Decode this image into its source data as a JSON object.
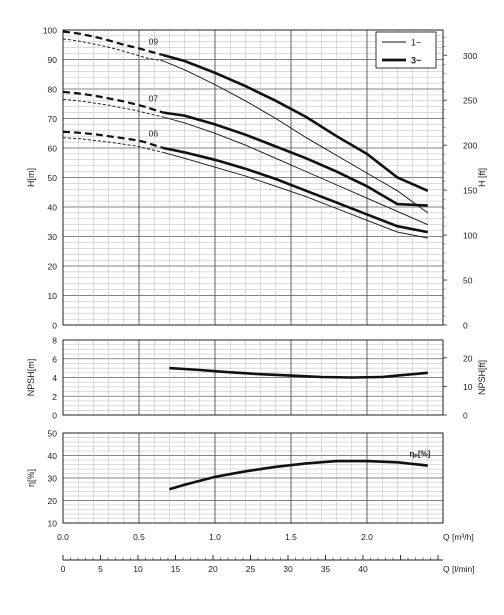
{
  "chart_data": [
    {
      "type": "line",
      "panel": "head",
      "ylabel_left": "H[m]",
      "ylabel_right": "H [ft]",
      "xlim": [
        0,
        2.5
      ],
      "ylim": [
        0,
        100
      ],
      "yticks": [
        "0",
        "10",
        "20",
        "30",
        "40",
        "50",
        "60",
        "70",
        "80",
        "90",
        "100"
      ],
      "yticks_right": [
        "0",
        "50",
        "100",
        "150",
        "200",
        "250",
        "300"
      ],
      "grid": true,
      "legend": {
        "position": "top-right",
        "items": [
          {
            "label": "1~",
            "style": "thin"
          },
          {
            "label": "3~",
            "style": "thick"
          }
        ]
      },
      "series": [
        {
          "name": "09",
          "phase": "1~",
          "dashed_x": [
            0,
            0.1,
            0.2,
            0.3,
            0.4,
            0.5,
            0.55,
            0.66
          ],
          "dashed_y": [
            97,
            96.3,
            95.3,
            94.2,
            92.8,
            91.3,
            90.5,
            89.5
          ],
          "x": [
            0.66,
            0.8,
            1.0,
            1.2,
            1.4,
            1.6,
            1.8,
            2.0,
            2.2,
            2.4
          ],
          "y": [
            89.5,
            86.5,
            81.5,
            76.0,
            70.0,
            63.5,
            57.5,
            51.5,
            45.5,
            38.0
          ]
        },
        {
          "name": "09",
          "phase": "3~",
          "dashed_x": [
            0,
            0.1,
            0.2,
            0.3,
            0.4,
            0.5,
            0.55,
            0.66
          ],
          "dashed_y": [
            99.5,
            98.8,
            97.8,
            96.5,
            95.0,
            93.8,
            93.0,
            91.5
          ],
          "x": [
            0.66,
            0.8,
            1.0,
            1.2,
            1.4,
            1.6,
            1.8,
            2.0,
            2.2,
            2.4
          ],
          "y": [
            91.5,
            89.5,
            85.5,
            81.0,
            76.0,
            70.5,
            64.0,
            58.0,
            50.0,
            45.5
          ]
        },
        {
          "name": "07",
          "phase": "1~",
          "dashed_x": [
            0,
            0.1,
            0.2,
            0.3,
            0.4,
            0.5,
            0.55,
            0.66
          ],
          "dashed_y": [
            76.5,
            76.0,
            75.3,
            74.5,
            73.5,
            72.5,
            71.8,
            70.5
          ],
          "x": [
            0.66,
            0.8,
            1.0,
            1.2,
            1.4,
            1.6,
            1.8,
            2.0,
            2.2,
            2.4
          ],
          "y": [
            70.5,
            68.5,
            65.0,
            61.0,
            56.5,
            52.0,
            47.5,
            43.0,
            38.5,
            34.0
          ]
        },
        {
          "name": "07",
          "phase": "3~",
          "dashed_x": [
            0,
            0.1,
            0.2,
            0.3,
            0.4,
            0.5,
            0.55,
            0.66
          ],
          "dashed_y": [
            79.0,
            78.5,
            77.8,
            76.8,
            75.8,
            74.5,
            73.8,
            72.0
          ],
          "x": [
            0.66,
            0.8,
            1.0,
            1.2,
            1.4,
            1.6,
            1.8,
            2.0,
            2.2,
            2.4
          ],
          "y": [
            72.0,
            71.0,
            68.0,
            64.5,
            60.5,
            56.5,
            52.0,
            47.0,
            41.0,
            40.5
          ]
        },
        {
          "name": "06",
          "phase": "1~",
          "dashed_x": [
            0,
            0.1,
            0.2,
            0.3,
            0.4,
            0.5,
            0.55,
            0.66
          ],
          "dashed_y": [
            63.5,
            63.2,
            62.6,
            62.0,
            61.3,
            60.5,
            59.8,
            58.5
          ],
          "x": [
            0.66,
            0.8,
            1.0,
            1.2,
            1.4,
            1.6,
            1.8,
            2.0,
            2.2,
            2.4
          ],
          "y": [
            58.5,
            56.5,
            53.5,
            50.5,
            47.0,
            43.5,
            39.5,
            35.5,
            31.5,
            29.5
          ]
        },
        {
          "name": "06",
          "phase": "3~",
          "dashed_x": [
            0,
            0.1,
            0.2,
            0.3,
            0.4,
            0.5,
            0.55,
            0.66
          ],
          "dashed_y": [
            65.5,
            65.2,
            64.7,
            64.0,
            63.3,
            62.5,
            61.8,
            60.0
          ],
          "x": [
            0.66,
            0.8,
            1.0,
            1.2,
            1.4,
            1.6,
            1.8,
            2.0,
            2.2,
            2.4
          ],
          "y": [
            60.0,
            58.5,
            56.0,
            53.0,
            49.5,
            45.5,
            41.5,
            37.5,
            33.5,
            31.5
          ]
        }
      ]
    },
    {
      "type": "line",
      "panel": "npsh",
      "ylabel_left": "NPSH[m]",
      "ylabel_right": "NPSH[ft]",
      "xlim": [
        0,
        2.5
      ],
      "ylim": [
        0,
        8
      ],
      "yticks": [
        "0",
        "2",
        "4",
        "6",
        "8"
      ],
      "yticks_right": [
        "0",
        "10",
        "20"
      ],
      "grid": true,
      "series": [
        {
          "x": [
            0.7,
            0.9,
            1.1,
            1.3,
            1.5,
            1.7,
            1.9,
            2.1,
            2.2,
            2.4
          ],
          "y": [
            5.0,
            4.8,
            4.55,
            4.35,
            4.2,
            4.05,
            4.0,
            4.05,
            4.2,
            4.5
          ]
        }
      ]
    },
    {
      "type": "line",
      "panel": "efficiency",
      "ylabel_left": "η[%]",
      "xlim": [
        0,
        2.5
      ],
      "ylim": [
        10,
        50
      ],
      "yticks": [
        "10",
        "20",
        "30",
        "40",
        "50"
      ],
      "grid": true,
      "series": [
        {
          "name": "ηₚ[%]",
          "x": [
            0.7,
            0.8,
            1.0,
            1.2,
            1.4,
            1.6,
            1.8,
            2.0,
            2.2,
            2.4
          ],
          "y": [
            25.0,
            27.0,
            30.5,
            33.0,
            35.0,
            36.5,
            37.5,
            37.5,
            37.0,
            35.5
          ]
        }
      ]
    },
    {
      "type": "axis",
      "panel": "x-axes",
      "xlabel_q": "Q [m³/h]",
      "xticks_q": [
        "0.0",
        "0.5",
        "1.0",
        "1.5",
        "2.0"
      ],
      "xlabel_l": "Q [l/min]",
      "xticks_l": [
        "0",
        "5",
        "10",
        "15",
        "20",
        "25",
        "30",
        "35",
        "40"
      ]
    }
  ]
}
